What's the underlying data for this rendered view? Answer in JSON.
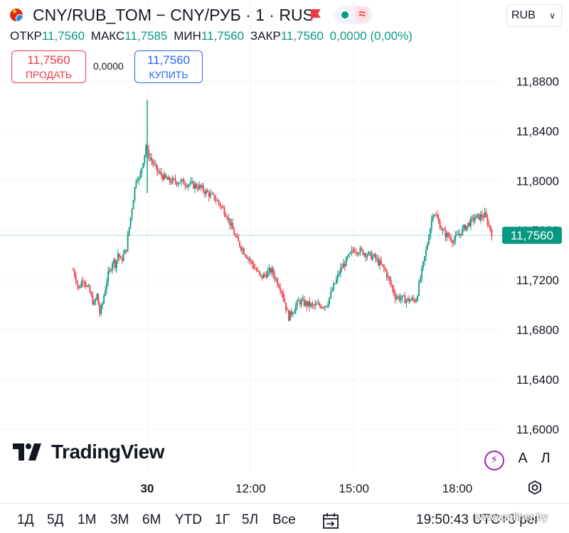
{
  "header": {
    "title": "CNY/RUB_TOM − CNY/РУБ · 1 · RUS",
    "currency": "RUB",
    "flag_icon": "cny-flag-icon",
    "status_icon": "wave-icon"
  },
  "ohlc": {
    "open_label": "ОТКР",
    "open": "11,7560",
    "high_label": "МАКС",
    "high": "11,7585",
    "low_label": "МИН",
    "low": "11,7560",
    "close_label": "ЗАКР",
    "close": "11,7560",
    "change": "0,0000 (0,00%)"
  },
  "trade": {
    "sell_price": "11,7560",
    "sell_label": "ПРОДАТЬ",
    "spread": "0,0000",
    "buy_price": "11,7560",
    "buy_label": "КУПИТЬ"
  },
  "chart_data": {
    "type": "candlestick",
    "title": "",
    "ylim": [
      11.565,
      11.91
    ],
    "y_ticks": [
      "11,8800",
      "11,8400",
      "11,8000",
      "11,7600",
      "11,7200",
      "11,6800",
      "11,6400",
      "11,6000"
    ],
    "y_tick_values": [
      11.88,
      11.84,
      11.8,
      11.76,
      11.72,
      11.68,
      11.64,
      11.6
    ],
    "x_ticks": [
      "30",
      "12:00",
      "15:00",
      "18:00"
    ],
    "x_tick_hours": [
      9,
      12,
      15,
      18
    ],
    "last_price": 11.756,
    "last_price_label": "11,7560",
    "grid": true,
    "price_series_hourly": [
      {
        "h": 9.0,
        "v": 11.823
      },
      {
        "h": 9.3,
        "v": 11.807
      },
      {
        "h": 9.6,
        "v": 11.8
      },
      {
        "h": 10.0,
        "v": 11.799
      },
      {
        "h": 10.5,
        "v": 11.795
      },
      {
        "h": 11.0,
        "v": 11.785
      },
      {
        "h": 11.3,
        "v": 11.773
      },
      {
        "h": 11.6,
        "v": 11.752
      },
      {
        "h": 12.0,
        "v": 11.735
      },
      {
        "h": 12.3,
        "v": 11.722
      },
      {
        "h": 12.6,
        "v": 11.728
      },
      {
        "h": 12.9,
        "v": 11.712
      },
      {
        "h": 13.1,
        "v": 11.69
      },
      {
        "h": 13.4,
        "v": 11.703
      },
      {
        "h": 13.8,
        "v": 11.699
      },
      {
        "h": 14.2,
        "v": 11.7
      },
      {
        "h": 14.6,
        "v": 11.728
      },
      {
        "h": 15.0,
        "v": 11.745
      },
      {
        "h": 15.3,
        "v": 11.742
      },
      {
        "h": 15.6,
        "v": 11.738
      },
      {
        "h": 15.9,
        "v": 11.728
      },
      {
        "h": 16.2,
        "v": 11.707
      },
      {
        "h": 16.5,
        "v": 11.704
      },
      {
        "h": 16.8,
        "v": 11.704
      },
      {
        "h": 17.1,
        "v": 11.745
      },
      {
        "h": 17.3,
        "v": 11.776
      },
      {
        "h": 17.6,
        "v": 11.758
      },
      {
        "h": 17.9,
        "v": 11.752
      },
      {
        "h": 18.2,
        "v": 11.762
      },
      {
        "h": 18.5,
        "v": 11.77
      },
      {
        "h": 18.8,
        "v": 11.772
      },
      {
        "h": 19.0,
        "v": 11.758
      }
    ],
    "price_series_early": [
      11.728,
      11.722,
      11.712,
      11.718,
      11.722,
      11.715,
      11.712,
      11.705,
      11.7,
      11.708,
      11.693,
      11.7,
      11.712,
      11.723,
      11.728,
      11.737,
      11.732,
      11.742,
      11.735,
      11.74,
      11.744,
      11.76,
      11.775,
      11.79,
      11.805,
      11.8,
      11.812,
      11.822,
      11.835
    ],
    "colors": {
      "up": "#089981",
      "down": "#f23645",
      "grid": "#f0f3fa",
      "price_line": "#089981"
    }
  },
  "logo": {
    "text": "TradingView"
  },
  "right_controls": {
    "auto_label": "A",
    "log_label": "Л"
  },
  "ranges": [
    "1Д",
    "5Д",
    "1М",
    "3М",
    "6М",
    "YTD",
    "1Г",
    "5Л",
    "Все"
  ],
  "clock": "19:50:43 UTC+3",
  "clock_suffix": "рег",
  "watermark": "www.onliner.by"
}
